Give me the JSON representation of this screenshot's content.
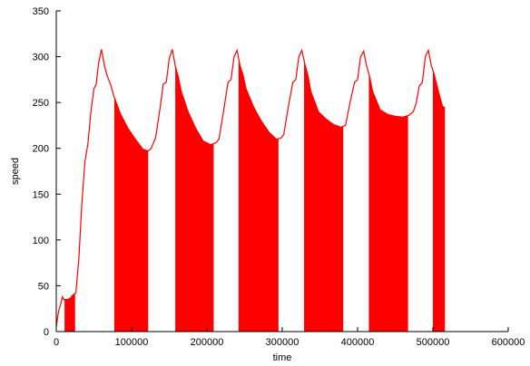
{
  "chart_data": {
    "type": "area",
    "xlabel": "time",
    "ylabel": "speed",
    "xlim": [
      0,
      600000
    ],
    "ylim": [
      0,
      350
    ],
    "x_ticks": [
      0,
      100000,
      200000,
      300000,
      400000,
      500000,
      600000
    ],
    "y_ticks": [
      0,
      50,
      100,
      150,
      200,
      250,
      300,
      350
    ],
    "grid": false,
    "legend": "none",
    "colors": {
      "series": "#ff0000",
      "axis": "#000000"
    },
    "series": [
      {
        "line": [
          [
            0,
            5
          ],
          [
            3000,
            22
          ],
          [
            6000,
            30
          ],
          [
            8000,
            38
          ],
          [
            10000,
            35
          ],
          [
            14000,
            35
          ],
          [
            18000,
            36
          ],
          [
            22000,
            40
          ],
          [
            26000,
            42
          ],
          [
            30000,
            80
          ],
          [
            34000,
            140
          ],
          [
            38000,
            185
          ],
          [
            42000,
            205
          ],
          [
            46000,
            240
          ],
          [
            50000,
            265
          ],
          [
            53000,
            270
          ],
          [
            56000,
            292
          ],
          [
            60000,
            308
          ],
          [
            64000,
            290
          ],
          [
            68000,
            278
          ],
          [
            72000,
            270
          ],
          [
            76000,
            258
          ],
          [
            85000,
            238
          ],
          [
            95000,
            222
          ],
          [
            105000,
            210
          ],
          [
            115000,
            199
          ],
          [
            122000,
            197
          ],
          [
            126000,
            200
          ],
          [
            132000,
            212
          ],
          [
            138000,
            245
          ],
          [
            142000,
            270
          ],
          [
            146000,
            272
          ],
          [
            150000,
            298
          ],
          [
            154000,
            308
          ],
          [
            158000,
            290
          ],
          [
            162000,
            278
          ],
          [
            166000,
            262
          ],
          [
            175000,
            240
          ],
          [
            185000,
            222
          ],
          [
            195000,
            208
          ],
          [
            205000,
            204
          ],
          [
            212000,
            206
          ],
          [
            216000,
            210
          ],
          [
            222000,
            240
          ],
          [
            228000,
            272
          ],
          [
            232000,
            275
          ],
          [
            236000,
            300
          ],
          [
            240000,
            307
          ],
          [
            244000,
            290
          ],
          [
            248000,
            280
          ],
          [
            252000,
            265
          ],
          [
            262000,
            245
          ],
          [
            272000,
            230
          ],
          [
            282000,
            218
          ],
          [
            292000,
            210
          ],
          [
            298000,
            211
          ],
          [
            302000,
            215
          ],
          [
            308000,
            245
          ],
          [
            314000,
            272
          ],
          [
            318000,
            275
          ],
          [
            322000,
            300
          ],
          [
            326000,
            307
          ],
          [
            330000,
            292
          ],
          [
            334000,
            280
          ],
          [
            338000,
            262
          ],
          [
            348000,
            240
          ],
          [
            358000,
            232
          ],
          [
            368000,
            226
          ],
          [
            378000,
            223
          ],
          [
            384000,
            225
          ],
          [
            390000,
            250
          ],
          [
            396000,
            272
          ],
          [
            400000,
            275
          ],
          [
            404000,
            300
          ],
          [
            408000,
            306
          ],
          [
            412000,
            290
          ],
          [
            416000,
            278
          ],
          [
            420000,
            262
          ],
          [
            430000,
            242
          ],
          [
            440000,
            237
          ],
          [
            450000,
            235
          ],
          [
            460000,
            234
          ],
          [
            468000,
            236
          ],
          [
            474000,
            240
          ],
          [
            478000,
            250
          ],
          [
            482000,
            268
          ],
          [
            486000,
            272
          ],
          [
            490000,
            300
          ],
          [
            494000,
            307
          ],
          [
            498000,
            290
          ],
          [
            502000,
            280
          ],
          [
            508000,
            260
          ],
          [
            513000,
            245
          ],
          [
            516000,
            245
          ]
        ],
        "filled_ranges": [
          [
            11000,
            25000
          ],
          [
            77000,
            122000
          ],
          [
            158000,
            209000
          ],
          [
            242000,
            295000
          ],
          [
            329000,
            381000
          ],
          [
            415000,
            467000
          ],
          [
            500000,
            516000
          ]
        ]
      }
    ]
  }
}
